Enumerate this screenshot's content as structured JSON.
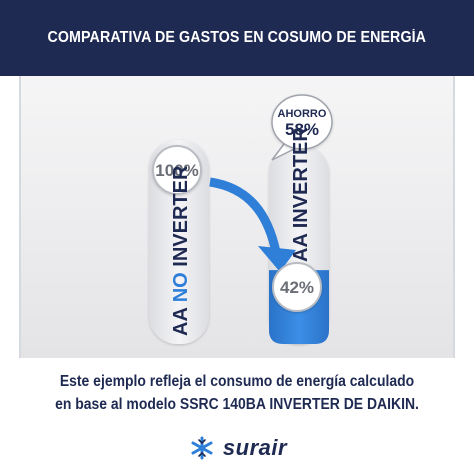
{
  "header": {
    "title": "COMPARATIVA DE GASTOS EN COSUMO DE ENERGÍA"
  },
  "chart_data": {
    "type": "bar",
    "categories": [
      "AA NO INVERTER",
      "AA INVERTER"
    ],
    "category_parts": [
      {
        "prefix": "AA ",
        "highlight": "NO",
        "suffix": " INVERTER"
      },
      {
        "prefix": "AA INVERTER",
        "highlight": "",
        "suffix": ""
      }
    ],
    "values": [
      100,
      42
    ],
    "value_labels": [
      "100%",
      "42%"
    ],
    "savings": {
      "label": "AHORRO",
      "value": "58%"
    },
    "ylim": [
      0,
      100
    ],
    "colors": {
      "bar_track": "#ebebed",
      "bar_fill": "#2f7fd8",
      "highlight_text": "#2f7fd8",
      "label_text": "#1f2a52",
      "arrow": "#2f7fd8",
      "badge_text": "#6b6e76"
    }
  },
  "footer": {
    "line1": "Este ejemplo refleja el consumo de energía calculado",
    "line2": "en base al modelo SSRC 140BA INVERTER DE DAIKIN."
  },
  "brand": {
    "name": "surair",
    "icon": "snowflake-icon"
  }
}
